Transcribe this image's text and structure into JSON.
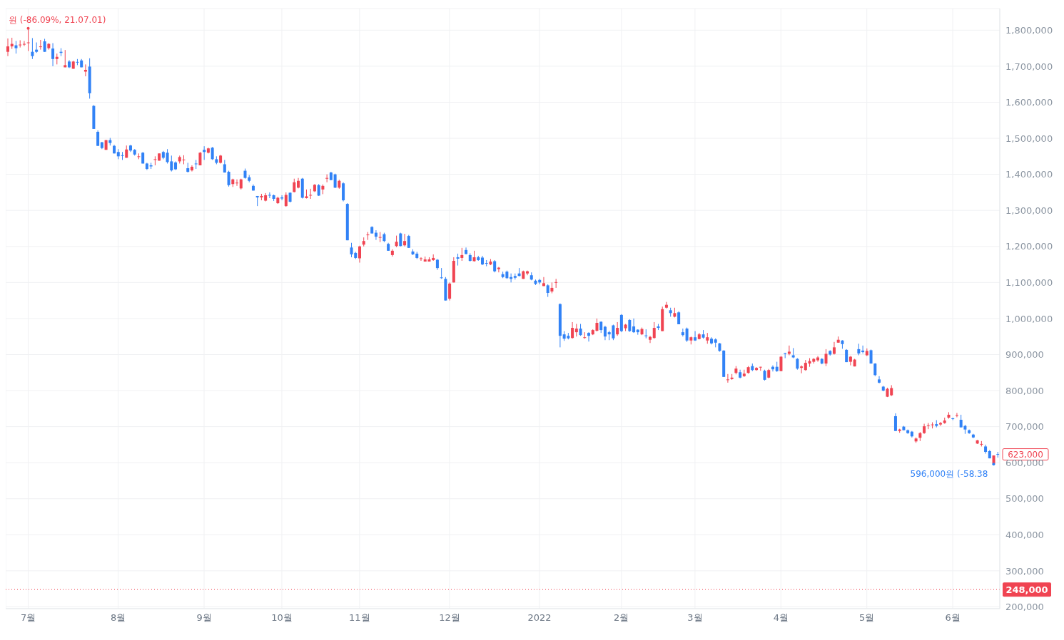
{
  "chart_data": {
    "type": "candlestick",
    "categories": [
      null,
      null,
      null,
      null,
      null,
      "7월",
      null,
      null,
      null,
      null,
      null,
      null,
      null,
      null,
      null,
      null,
      null,
      null,
      null,
      null,
      null,
      null,
      null,
      null,
      null,
      null,
      null,
      "8월",
      null,
      null,
      null,
      null,
      null,
      null,
      null,
      null,
      null,
      null,
      null,
      null,
      null,
      null,
      null,
      null,
      null,
      null,
      null,
      null,
      "9월",
      null,
      null,
      null,
      null,
      null,
      null,
      null,
      null,
      null,
      null,
      null,
      null,
      null,
      null,
      null,
      null,
      null,
      null,
      "10월",
      null,
      null,
      null,
      null,
      null,
      null,
      null,
      null,
      null,
      null,
      null,
      null,
      null,
      null,
      null,
      null,
      null,
      null,
      "11월",
      null,
      null,
      null,
      null,
      null,
      null,
      null,
      null,
      null,
      null,
      null,
      null,
      null,
      null,
      null,
      null,
      null,
      null,
      null,
      null,
      null,
      "12월",
      null,
      null,
      null,
      null,
      null,
      null,
      null,
      null,
      null,
      null,
      null,
      null,
      null,
      null,
      null,
      null,
      null,
      null,
      null,
      null,
      null,
      "2022",
      null,
      null,
      null,
      null,
      null,
      null,
      null,
      null,
      null,
      null,
      null,
      null,
      null,
      null,
      null,
      null,
      null,
      null,
      null,
      "2월",
      null,
      null,
      null,
      null,
      null,
      null,
      null,
      null,
      null,
      null,
      null,
      null,
      null,
      null,
      null,
      null,
      null,
      "3월",
      null,
      null,
      null,
      null,
      null,
      null,
      null,
      null,
      null,
      null,
      null,
      null,
      null,
      null,
      null,
      null,
      null,
      null,
      null,
      null,
      "4월",
      null,
      null,
      null,
      null,
      null,
      null,
      null,
      null,
      null,
      null,
      null,
      null,
      null,
      null,
      null,
      null,
      null,
      null,
      null,
      null,
      "5월",
      null,
      null,
      null,
      null,
      null,
      null,
      null,
      null,
      null,
      null,
      null,
      null,
      null,
      null,
      null,
      null,
      null,
      null,
      null,
      null,
      "6월",
      null,
      null,
      null,
      null,
      null,
      null,
      null,
      null,
      null,
      null,
      null
    ],
    "ohlc": [
      [
        1740000,
        1777000,
        1728000,
        1755000
      ],
      [
        1755000,
        1779000,
        1748000,
        1762000
      ],
      [
        1758000,
        1770000,
        1735000,
        1750000
      ],
      [
        1758000,
        1772000,
        1752000,
        1760000
      ],
      [
        1760000,
        1770000,
        1756000,
        1762000
      ],
      [
        1764000,
        1805000,
        1742000,
        1766000
      ],
      [
        1740000,
        1778000,
        1720000,
        1728000
      ],
      [
        1746000,
        1766000,
        1737000,
        1740000
      ],
      [
        1753000,
        1773000,
        1746000,
        1755000
      ],
      [
        1769000,
        1776000,
        1740000,
        1740000
      ],
      [
        1750000,
        1764000,
        1746000,
        1762000
      ],
      [
        1749000,
        1764000,
        1700000,
        1720000
      ],
      [
        1720000,
        1735000,
        1705000,
        1726000
      ],
      [
        1740000,
        1750000,
        1728000,
        1737000
      ],
      [
        1697000,
        1745000,
        1697000,
        1703000
      ],
      [
        1713000,
        1717000,
        1695000,
        1697000
      ],
      [
        1693000,
        1715000,
        1693000,
        1713000
      ],
      [
        1712000,
        1720000,
        1703000,
        1710000
      ],
      [
        1716000,
        1720000,
        1697000,
        1697000
      ],
      [
        1685000,
        1705000,
        1672000,
        1690000
      ],
      [
        1699000,
        1722000,
        1610000,
        1625000
      ],
      [
        1590000,
        1592000,
        1526000,
        1526000
      ],
      [
        1518000,
        1522000,
        1479000,
        1479000
      ],
      [
        1489000,
        1490000,
        1470000,
        1473000
      ],
      [
        1468000,
        1495000,
        1468000,
        1495000
      ],
      [
        1495000,
        1501000,
        1480000,
        1487000
      ],
      [
        1479000,
        1482000,
        1458000,
        1458000
      ],
      [
        1462000,
        1470000,
        1442000,
        1450000
      ],
      [
        1453000,
        1462000,
        1440000,
        1451000
      ],
      [
        1446000,
        1480000,
        1446000,
        1469000
      ],
      [
        1480000,
        1482000,
        1462000,
        1466000
      ],
      [
        1468000,
        1470000,
        1452000,
        1455000
      ],
      [
        1448000,
        1458000,
        1442000,
        1450000
      ],
      [
        1460000,
        1462000,
        1430000,
        1430000
      ],
      [
        1430000,
        1432000,
        1412000,
        1415000
      ],
      [
        1425000,
        1432000,
        1415000,
        1422000
      ],
      [
        1440000,
        1450000,
        1425000,
        1442000
      ],
      [
        1438000,
        1458000,
        1438000,
        1458000
      ],
      [
        1462000,
        1465000,
        1442000,
        1446000
      ],
      [
        1460000,
        1470000,
        1430000,
        1434000
      ],
      [
        1436000,
        1452000,
        1408000,
        1411000
      ],
      [
        1433000,
        1436000,
        1412000,
        1414000
      ],
      [
        1436000,
        1452000,
        1430000,
        1448000
      ],
      [
        1439000,
        1453000,
        1428000,
        1441000
      ],
      [
        1417000,
        1432000,
        1405000,
        1407000
      ],
      [
        1411000,
        1425000,
        1408000,
        1421000
      ],
      [
        1430000,
        1440000,
        1415000,
        1428000
      ],
      [
        1425000,
        1462000,
        1425000,
        1460000
      ],
      [
        1468000,
        1478000,
        1440000,
        1462000
      ],
      [
        1460000,
        1474000,
        1458000,
        1472000
      ],
      [
        1474000,
        1476000,
        1440000,
        1442000
      ],
      [
        1442000,
        1450000,
        1428000,
        1432000
      ],
      [
        1432000,
        1454000,
        1430000,
        1452000
      ],
      [
        1428000,
        1440000,
        1405000,
        1405000
      ],
      [
        1407000,
        1410000,
        1366000,
        1370000
      ],
      [
        1373000,
        1388000,
        1365000,
        1386000
      ],
      [
        1375000,
        1386000,
        1368000,
        1377000
      ],
      [
        1361000,
        1388000,
        1358000,
        1386000
      ],
      [
        1410000,
        1416000,
        1388000,
        1390000
      ],
      [
        1392000,
        1398000,
        1378000,
        1382000
      ],
      [
        1368000,
        1372000,
        1355000,
        1355000
      ],
      [
        1340000,
        1340000,
        1312000,
        1336000
      ],
      [
        1336000,
        1346000,
        1328000,
        1340000
      ],
      [
        1327000,
        1348000,
        1325000,
        1342000
      ],
      [
        1343000,
        1350000,
        1334000,
        1341000
      ],
      [
        1342000,
        1344000,
        1326000,
        1332000
      ],
      [
        1320000,
        1338000,
        1318000,
        1335000
      ],
      [
        1336000,
        1342000,
        1328000,
        1333000
      ],
      [
        1312000,
        1350000,
        1310000,
        1343000
      ],
      [
        1349000,
        1350000,
        1322000,
        1324000
      ],
      [
        1351000,
        1388000,
        1350000,
        1378000
      ],
      [
        1363000,
        1390000,
        1361000,
        1382000
      ],
      [
        1388000,
        1390000,
        1333000,
        1335000
      ],
      [
        1334000,
        1358000,
        1333000,
        1339000
      ],
      [
        1341000,
        1360000,
        1332000,
        1343000
      ],
      [
        1353000,
        1373000,
        1351000,
        1371000
      ],
      [
        1370000,
        1373000,
        1340000,
        1341000
      ],
      [
        1358000,
        1372000,
        1345000,
        1368000
      ],
      [
        1388000,
        1400000,
        1378000,
        1390000
      ],
      [
        1405000,
        1407000,
        1384000,
        1384000
      ],
      [
        1400000,
        1402000,
        1362000,
        1363000
      ],
      [
        1363000,
        1385000,
        1360000,
        1382000
      ],
      [
        1375000,
        1378000,
        1325000,
        1328000
      ],
      [
        1318000,
        1320000,
        1217000,
        1217000
      ],
      [
        1197000,
        1210000,
        1170000,
        1178000
      ],
      [
        1182000,
        1185000,
        1165000,
        1168000
      ],
      [
        1167000,
        1202000,
        1155000,
        1200000
      ],
      [
        1205000,
        1225000,
        1200000,
        1215000
      ],
      [
        1231000,
        1240000,
        1218000,
        1233000
      ],
      [
        1254000,
        1256000,
        1236000,
        1236000
      ],
      [
        1238000,
        1245000,
        1218000,
        1227000
      ],
      [
        1224000,
        1240000,
        1212000,
        1226000
      ],
      [
        1234000,
        1238000,
        1212000,
        1215000
      ],
      [
        1207000,
        1210000,
        1188000,
        1188000
      ],
      [
        1176000,
        1192000,
        1172000,
        1188000
      ],
      [
        1201000,
        1230000,
        1198000,
        1213000
      ],
      [
        1236000,
        1238000,
        1200000,
        1201000
      ],
      [
        1203000,
        1235000,
        1200000,
        1215000
      ],
      [
        1229000,
        1232000,
        1196000,
        1196000
      ],
      [
        1186000,
        1192000,
        1176000,
        1178000
      ],
      [
        1180000,
        1185000,
        1165000,
        1168000
      ],
      [
        1165000,
        1170000,
        1160000,
        1167000
      ],
      [
        1158000,
        1172000,
        1158000,
        1164000
      ],
      [
        1158000,
        1170000,
        1158000,
        1164000
      ],
      [
        1162000,
        1178000,
        1160000,
        1168000
      ],
      [
        1163000,
        1165000,
        1135000,
        1140000
      ],
      [
        1114000,
        1140000,
        1110000,
        1112000
      ],
      [
        1110000,
        1115000,
        1050000,
        1050000
      ],
      [
        1055000,
        1100000,
        1050000,
        1097000
      ],
      [
        1100000,
        1170000,
        1100000,
        1160000
      ],
      [
        1170000,
        1180000,
        1147000,
        1166000
      ],
      [
        1168000,
        1196000,
        1160000,
        1176000
      ],
      [
        1190000,
        1197000,
        1178000,
        1179000
      ],
      [
        1176000,
        1181000,
        1158000,
        1160000
      ],
      [
        1159000,
        1188000,
        1158000,
        1170000
      ],
      [
        1170000,
        1174000,
        1160000,
        1162000
      ],
      [
        1169000,
        1174000,
        1148000,
        1150000
      ],
      [
        1154000,
        1162000,
        1145000,
        1152000
      ],
      [
        1150000,
        1165000,
        1148000,
        1158000
      ],
      [
        1159000,
        1162000,
        1128000,
        1131000
      ],
      [
        1137000,
        1143000,
        1128000,
        1141000
      ],
      [
        1123000,
        1130000,
        1112000,
        1115000
      ],
      [
        1130000,
        1133000,
        1110000,
        1112000
      ],
      [
        1115000,
        1125000,
        1100000,
        1110000
      ],
      [
        1118000,
        1125000,
        1108000,
        1113000
      ],
      [
        1125000,
        1140000,
        1117000,
        1118000
      ],
      [
        1110000,
        1133000,
        1110000,
        1131000
      ],
      [
        1125000,
        1133000,
        1120000,
        1131000
      ],
      [
        1120000,
        1128000,
        1106000,
        1108000
      ],
      [
        1105000,
        1108000,
        1093000,
        1096000
      ],
      [
        1107000,
        1110000,
        1095000,
        1100000
      ],
      [
        1090000,
        1115000,
        1090000,
        1098000
      ],
      [
        1092000,
        1095000,
        1060000,
        1071000
      ],
      [
        1075000,
        1100000,
        1070000,
        1085000
      ],
      [
        1099000,
        1110000,
        1085000,
        1101000
      ],
      [
        1040000,
        1042000,
        920000,
        952000
      ],
      [
        956000,
        965000,
        938000,
        944000
      ],
      [
        952000,
        960000,
        942000,
        945000
      ],
      [
        946000,
        990000,
        944000,
        974000
      ],
      [
        962000,
        985000,
        950000,
        972000
      ],
      [
        972000,
        985000,
        952000,
        954000
      ],
      [
        946000,
        962000,
        944000,
        948000
      ],
      [
        960000,
        962000,
        936000,
        952000
      ],
      [
        956000,
        970000,
        954000,
        968000
      ],
      [
        966000,
        1000000,
        964000,
        988000
      ],
      [
        991000,
        992000,
        960000,
        968000
      ],
      [
        977000,
        980000,
        940000,
        950000
      ],
      [
        962000,
        966000,
        940000,
        956000
      ],
      [
        981000,
        983000,
        940000,
        945000
      ],
      [
        956000,
        990000,
        952000,
        974000
      ],
      [
        1010000,
        1012000,
        962000,
        965000
      ],
      [
        973000,
        985000,
        965000,
        983000
      ],
      [
        996000,
        998000,
        963000,
        965000
      ],
      [
        978000,
        1000000,
        960000,
        962000
      ],
      [
        969000,
        970000,
        955000,
        962000
      ],
      [
        956000,
        975000,
        954000,
        971000
      ],
      [
        953000,
        970000,
        945000,
        951000
      ],
      [
        941000,
        952000,
        932000,
        949000
      ],
      [
        946000,
        990000,
        944000,
        974000
      ],
      [
        978000,
        985000,
        968000,
        974000
      ],
      [
        965000,
        1033000,
        965000,
        1026000
      ],
      [
        1030000,
        1046000,
        1028000,
        1038000
      ],
      [
        1023000,
        1030000,
        1005000,
        1015000
      ],
      [
        1005000,
        1030000,
        1003000,
        1015000
      ],
      [
        1017000,
        1020000,
        984000,
        984000
      ],
      [
        962000,
        972000,
        950000,
        954000
      ],
      [
        972000,
        975000,
        935000,
        939000
      ],
      [
        939000,
        950000,
        928000,
        948000
      ],
      [
        948000,
        965000,
        938000,
        939000
      ],
      [
        943000,
        960000,
        942000,
        956000
      ],
      [
        956000,
        968000,
        944000,
        947000
      ],
      [
        939000,
        960000,
        930000,
        948000
      ],
      [
        944000,
        948000,
        928000,
        931000
      ],
      [
        942000,
        945000,
        920000,
        933000
      ],
      [
        931000,
        932000,
        908000,
        910000
      ],
      [
        911000,
        912000,
        838000,
        838000
      ],
      [
        829000,
        846000,
        822000,
        831000
      ],
      [
        832000,
        846000,
        830000,
        836000
      ],
      [
        849000,
        868000,
        845000,
        861000
      ],
      [
        851000,
        858000,
        834000,
        836000
      ],
      [
        840000,
        858000,
        838000,
        847000
      ],
      [
        849000,
        868000,
        847000,
        865000
      ],
      [
        868000,
        875000,
        854000,
        857000
      ],
      [
        857000,
        865000,
        855000,
        863000
      ],
      [
        864000,
        866000,
        855000,
        866000
      ],
      [
        855000,
        858000,
        828000,
        830000
      ],
      [
        836000,
        860000,
        834000,
        857000
      ],
      [
        866000,
        870000,
        853000,
        859000
      ],
      [
        866000,
        880000,
        852000,
        854000
      ],
      [
        854000,
        896000,
        854000,
        894000
      ],
      [
        904000,
        905000,
        890000,
        902000
      ],
      [
        902000,
        925000,
        898000,
        908000
      ],
      [
        898000,
        918000,
        890000,
        892000
      ],
      [
        888000,
        890000,
        858000,
        861000
      ],
      [
        863000,
        870000,
        848000,
        867000
      ],
      [
        857000,
        885000,
        855000,
        877000
      ],
      [
        875000,
        890000,
        866000,
        882000
      ],
      [
        880000,
        890000,
        875000,
        888000
      ],
      [
        884000,
        896000,
        880000,
        892000
      ],
      [
        888000,
        890000,
        873000,
        875000
      ],
      [
        875000,
        915000,
        868000,
        902000
      ],
      [
        910000,
        912000,
        897000,
        900000
      ],
      [
        902000,
        935000,
        900000,
        920000
      ],
      [
        933000,
        950000,
        933000,
        941000
      ],
      [
        939000,
        940000,
        916000,
        929000
      ],
      [
        913000,
        915000,
        879000,
        879000
      ],
      [
        880000,
        896000,
        870000,
        894000
      ],
      [
        867000,
        888000,
        867000,
        886000
      ],
      [
        915000,
        930000,
        898000,
        903000
      ],
      [
        911000,
        925000,
        903000,
        907000
      ],
      [
        898000,
        917000,
        896000,
        910000
      ],
      [
        912000,
        914000,
        875000,
        875000
      ],
      [
        875000,
        876000,
        840000,
        843000
      ],
      [
        831000,
        840000,
        820000,
        822000
      ],
      [
        811000,
        813000,
        798000,
        800000
      ],
      [
        783000,
        808000,
        782000,
        805000
      ],
      [
        787000,
        815000,
        785000,
        807000
      ],
      [
        729000,
        737000,
        688000,
        688000
      ],
      [
        688000,
        694000,
        683000,
        692000
      ],
      [
        700000,
        702000,
        690000,
        690000
      ],
      [
        690000,
        692000,
        680000,
        682000
      ],
      [
        686000,
        688000,
        670000,
        673000
      ],
      [
        659000,
        670000,
        655000,
        667000
      ],
      [
        669000,
        685000,
        660000,
        682000
      ],
      [
        682000,
        708000,
        680000,
        701000
      ],
      [
        702000,
        710000,
        693000,
        704000
      ],
      [
        704000,
        712000,
        695000,
        706000
      ],
      [
        707000,
        718000,
        698000,
        702000
      ],
      [
        706000,
        713000,
        702000,
        710000
      ],
      [
        710000,
        725000,
        708000,
        717000
      ],
      [
        725000,
        740000,
        722000,
        733000
      ],
      [
        723000,
        725000,
        718000,
        721000
      ],
      [
        730000,
        738000,
        726000,
        732000
      ],
      [
        719000,
        733000,
        698000,
        698000
      ],
      [
        702000,
        705000,
        680000,
        692000
      ],
      [
        690000,
        692000,
        680000,
        682000
      ],
      [
        678000,
        680000,
        668000,
        670000
      ],
      [
        653000,
        663000,
        652000,
        662000
      ],
      [
        650000,
        660000,
        645000,
        652000
      ],
      [
        645000,
        650000,
        625000,
        630000
      ],
      [
        632000,
        635000,
        612000,
        612000
      ],
      [
        597000,
        620000,
        596000,
        620000
      ],
      [
        624000,
        630000,
        614000,
        623000
      ]
    ],
    "colors": [
      "#f04452",
      "#f04452",
      "#3182f6",
      "#f04452",
      "#f04452",
      "#f04452",
      "#3182f6",
      "#3182f6",
      "#f04452",
      "#3182f6",
      "#f04452",
      "#3182f6",
      "#f04452",
      "#3182f6",
      "#f04452",
      "#3182f6",
      "#f04452",
      "#3182f6",
      "#3182f6",
      "#f04452",
      "#3182f6",
      "#3182f6",
      "#3182f6",
      "#3182f6",
      "#f04452",
      "#3182f6",
      "#3182f6",
      "#3182f6",
      "#3182f6",
      "#f04452",
      "#3182f6",
      "#3182f6",
      "#f04452",
      "#3182f6",
      "#3182f6",
      "#3182f6",
      "#f04452",
      "#f04452",
      "#3182f6",
      "#3182f6",
      "#3182f6",
      "#3182f6",
      "#f04452",
      "#f04452",
      "#3182f6",
      "#f04452",
      "#3182f6",
      "#f04452",
      "#3182f6",
      "#f04452",
      "#3182f6",
      "#3182f6",
      "#f04452",
      "#3182f6",
      "#3182f6",
      "#f04452",
      "#f04452",
      "#f04452",
      "#3182f6",
      "#3182f6",
      "#3182f6",
      "#3182f6",
      "#f04452",
      "#f04452",
      "#3182f6",
      "#3182f6",
      "#f04452",
      "#3182f6",
      "#f04452",
      "#3182f6",
      "#f04452",
      "#f04452",
      "#3182f6",
      "#f04452",
      "#f04452",
      "#f04452",
      "#3182f6",
      "#f04452",
      "#f04452",
      "#3182f6",
      "#3182f6",
      "#f04452",
      "#3182f6",
      "#3182f6",
      "#3182f6",
      "#3182f6",
      "#f04452",
      "#f04452",
      "#f04452",
      "#3182f6",
      "#3182f6",
      "#f04452",
      "#3182f6",
      "#3182f6",
      "#f04452",
      "#f04452",
      "#3182f6",
      "#f04452",
      "#3182f6",
      "#3182f6",
      "#3182f6",
      "#f04452",
      "#f04452",
      "#f04452",
      "#f04452",
      "#3182f6",
      "#3182f6",
      "#3182f6",
      "#f04452",
      "#f04452",
      "#3182f6",
      "#f04452",
      "#3182f6",
      "#3182f6",
      "#f04452",
      "#3182f6",
      "#3182f6",
      "#3182f6",
      "#f04452",
      "#3182f6",
      "#f04452",
      "#3182f6",
      "#3182f6",
      "#3182f6",
      "#3182f6",
      "#3182f6",
      "#f04452",
      "#f04452",
      "#3182f6",
      "#3182f6",
      "#3182f6",
      "#f04452",
      "#3182f6",
      "#f04452",
      "#f04452",
      "#3182f6",
      "#3182f6",
      "#3182f6",
      "#f04452",
      "#f04452",
      "#3182f6",
      "#f04452",
      "#3182f6",
      "#f04452",
      "#f04452",
      "#3182f6",
      "#3182f6",
      "#3182f6",
      "#3182f6",
      "#f04452",
      "#3182f6",
      "#f04452",
      "#3182f6",
      "#3182f6",
      "#3182f6",
      "#f04452",
      "#3182f6",
      "#f04452",
      "#f04452",
      "#3182f6",
      "#f04452",
      "#f04452",
      "#3182f6",
      "#f04452",
      "#3182f6",
      "#3182f6",
      "#3182f6",
      "#f04452",
      "#3182f6",
      "#f04452",
      "#3182f6",
      "#f04452",
      "#3182f6",
      "#3182f6",
      "#3182f6",
      "#3182f6",
      "#f04452",
      "#f04452",
      "#f04452",
      "#3182f6",
      "#f04452",
      "#f04452",
      "#3182f6",
      "#f04452",
      "#f04452",
      "#3182f6",
      "#f04452",
      "#3182f6",
      "#3182f6",
      "#f04452",
      "#3182f6",
      "#f04452",
      "#3182f6",
      "#3182f6",
      "#f04452",
      "#f04452",
      "#f04452",
      "#f04452",
      "#f04452",
      "#3182f6",
      "#f04452",
      "#3182f6",
      "#f04452",
      "#f04452",
      "#3182f6",
      "#3182f6",
      "#f04452",
      "#f04452",
      "#3182f6",
      "#3182f6",
      "#f04452",
      "#3182f6",
      "#3182f6",
      "#3182f6",
      "#3182f6",
      "#f04452",
      "#f04452",
      "#3182f6",
      "#f04452",
      "#3182f6",
      "#3182f6",
      "#3182f6",
      "#f04452",
      "#f04452",
      "#f04452",
      "#f04452",
      "#f04452",
      "#3182f6",
      "#f04452",
      "#f04452",
      "#f04452",
      "#3182f6",
      "#f04452",
      "#3182f6",
      "#3182f6",
      "#3182f6",
      "#3182f6",
      "#f04452",
      "#f04452",
      "#3182f6",
      "#3182f6",
      "#f04452",
      "#3182f6"
    ],
    "ylim": [
      195000,
      1860000
    ],
    "yticks": [
      {
        "value": 200000,
        "label": "200,000"
      },
      {
        "value": 300000,
        "label": "300,000"
      },
      {
        "value": 400000,
        "label": "400,000"
      },
      {
        "value": 500000,
        "label": "500,000"
      },
      {
        "value": 600000,
        "label": "600,000"
      },
      {
        "value": 700000,
        "label": "700,000"
      },
      {
        "value": 800000,
        "label": "800,000"
      },
      {
        "value": 900000,
        "label": "900,000"
      },
      {
        "value": 1000000,
        "label": "1,000,000"
      },
      {
        "value": 1100000,
        "label": "1,100,000"
      },
      {
        "value": 1200000,
        "label": "1,200,000"
      },
      {
        "value": 1300000,
        "label": "1,300,000"
      },
      {
        "value": 1400000,
        "label": "1,400,000"
      },
      {
        "value": 1500000,
        "label": "1,500,000"
      },
      {
        "value": 1600000,
        "label": "1,600,000"
      },
      {
        "value": 1700000,
        "label": "1,700,000"
      },
      {
        "value": 1800000,
        "label": "1,800,000"
      }
    ],
    "grid": true,
    "ref_lines": [
      {
        "axis": "y",
        "value": 248000,
        "label": "248,000",
        "color": "#f04452",
        "line_style": "dotted"
      }
    ],
    "annotations": [
      {
        "text": "원 (-86.09%, 21.07.01)",
        "x": "7월",
        "y": 1805000
      },
      "596,000원 (-58.38",
      "623,000"
    ]
  }
}
